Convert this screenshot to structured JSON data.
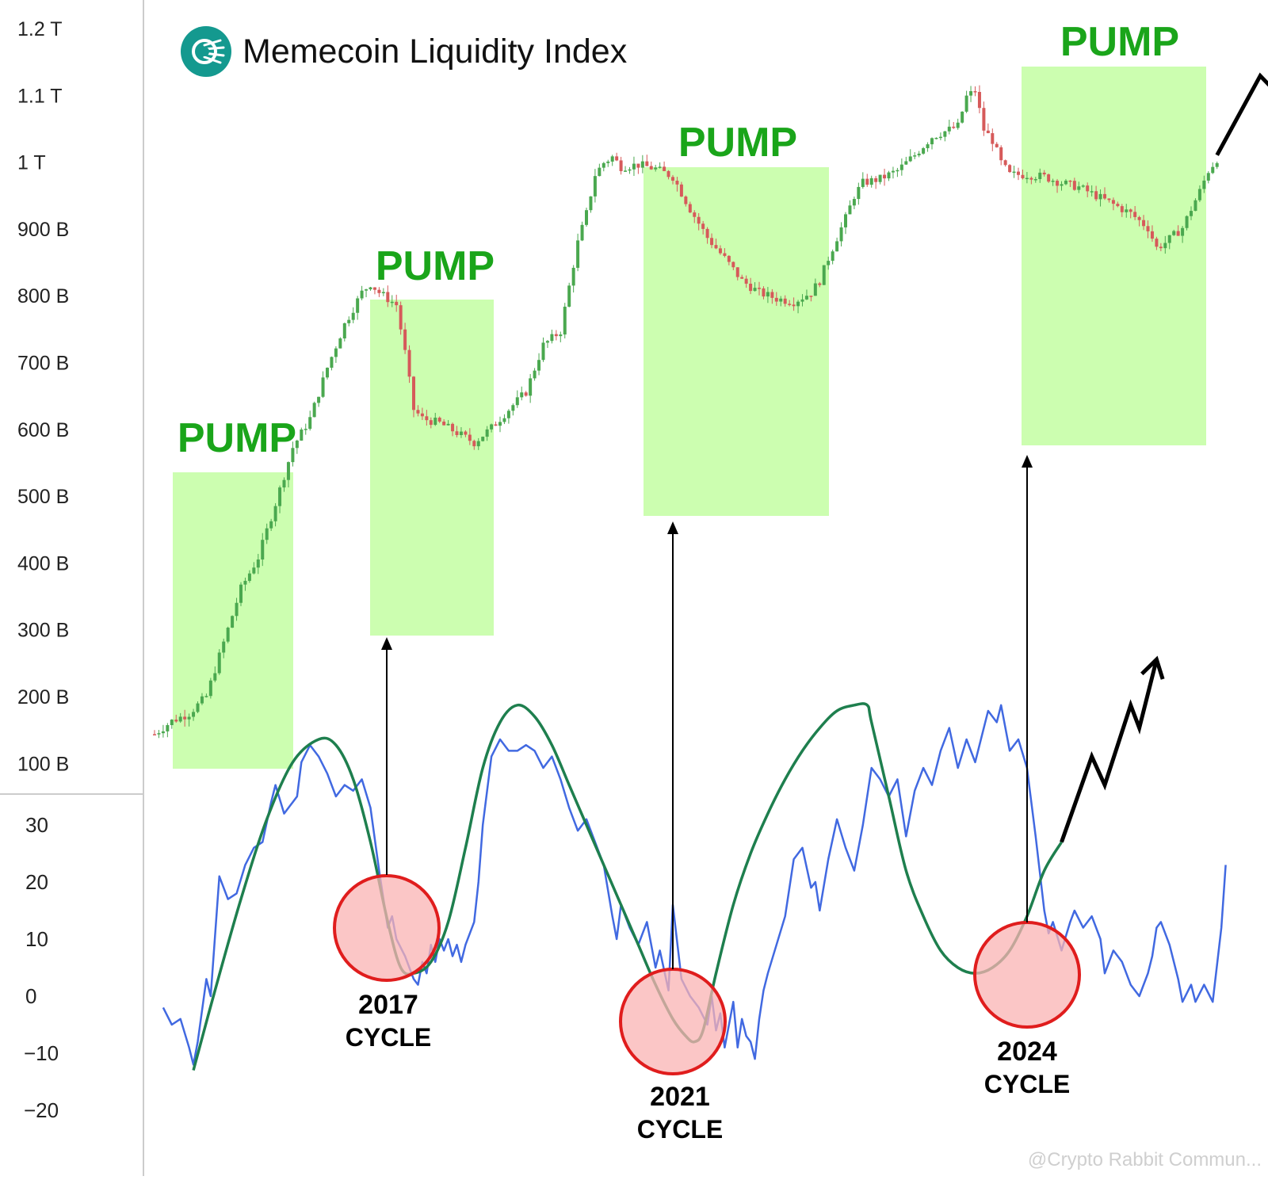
{
  "title": "Memecoin Liquidity Index",
  "watermark": "@Crypto Rabbit Commun...",
  "colors": {
    "pump_zone": "#ccfeb0",
    "pump_text": "#1aa51a",
    "candle_up": "#4aa84f",
    "candle_down": "#d65a5a",
    "oscillator_line": "#4169e1",
    "smooth_curve": "#1e7f4e",
    "cycle_circle_fill": "#f9b3b3",
    "cycle_circle_stroke": "#e01d1d",
    "logo": "#14998f"
  },
  "icons": {
    "logo": "liquidity-logo-icon"
  },
  "chart_data": [
    {
      "type": "candlestick",
      "name": "price-panel",
      "y_axis": {
        "scale": "log",
        "ticks": [
          "1.2 T",
          "1.1 T",
          "1 T",
          "900 B",
          "800 B",
          "700 B",
          "600 B",
          "500 B",
          "400 B",
          "300 B",
          "200 B",
          "100 B"
        ]
      },
      "pump_labels": [
        "PUMP",
        "PUMP",
        "PUMP",
        "PUMP"
      ],
      "close_path": [
        [
          0,
          110
        ],
        [
          4,
          115
        ],
        [
          8,
          118
        ],
        [
          12,
          125
        ],
        [
          16,
          150
        ],
        [
          20,
          180
        ],
        [
          24,
          200
        ],
        [
          28,
          240
        ],
        [
          32,
          290
        ],
        [
          36,
          320
        ],
        [
          40,
          380
        ],
        [
          44,
          440
        ],
        [
          48,
          490
        ],
        [
          50,
          505
        ],
        [
          52,
          490
        ],
        [
          56,
          470
        ],
        [
          58,
          400
        ],
        [
          60,
          330
        ],
        [
          62,
          320
        ],
        [
          66,
          315
        ],
        [
          70,
          305
        ],
        [
          74,
          295
        ],
        [
          78,
          310
        ],
        [
          82,
          330
        ],
        [
          86,
          350
        ],
        [
          90,
          410
        ],
        [
          94,
          430
        ],
        [
          96,
          500
        ],
        [
          98,
          580
        ],
        [
          100,
          640
        ],
        [
          102,
          730
        ],
        [
          104,
          760
        ],
        [
          106,
          775
        ],
        [
          108,
          750
        ],
        [
          112,
          755
        ],
        [
          116,
          745
        ],
        [
          120,
          725
        ],
        [
          124,
          650
        ],
        [
          128,
          590
        ],
        [
          132,
          550
        ],
        [
          136,
          510
        ],
        [
          140,
          490
        ],
        [
          144,
          480
        ],
        [
          148,
          475
        ],
        [
          152,
          490
        ],
        [
          154,
          510
        ],
        [
          156,
          550
        ],
        [
          158,
          590
        ],
        [
          160,
          630
        ],
        [
          162,
          680
        ],
        [
          164,
          710
        ],
        [
          168,
          720
        ],
        [
          172,
          740
        ],
        [
          176,
          780
        ],
        [
          180,
          830
        ],
        [
          184,
          850
        ],
        [
          186,
          860
        ],
        [
          188,
          950
        ],
        [
          190,
          970
        ],
        [
          192,
          850
        ],
        [
          194,
          820
        ],
        [
          196,
          760
        ],
        [
          198,
          730
        ],
        [
          202,
          730
        ],
        [
          206,
          725
        ],
        [
          210,
          710
        ],
        [
          214,
          700
        ],
        [
          218,
          680
        ],
        [
          222,
          660
        ],
        [
          226,
          640
        ],
        [
          230,
          610
        ],
        [
          232,
          570
        ],
        [
          234,
          580
        ],
        [
          238,
          610
        ],
        [
          240,
          650
        ],
        [
          242,
          690
        ],
        [
          244,
          740
        ],
        [
          246,
          770
        ]
      ],
      "forecast_path": [
        [
          246,
          780
        ],
        [
          256,
          1020
        ],
        [
          260,
          960
        ],
        [
          266,
          1130
        ],
        [
          270,
          1080
        ],
        [
          276,
          1190
        ]
      ]
    },
    {
      "type": "line",
      "name": "oscillator-panel",
      "y_axis": {
        "ticks": [
          "30",
          "20",
          "10",
          "0",
          "−10",
          "−20"
        ]
      },
      "series": [
        {
          "key": "oscillator",
          "values": [
            [
              2,
              -2
            ],
            [
              4,
              -5
            ],
            [
              6,
              -4
            ],
            [
              8,
              -9
            ],
            [
              9,
              -12
            ],
            [
              10,
              -8
            ],
            [
              12,
              3
            ],
            [
              13,
              0
            ],
            [
              15,
              21
            ],
            [
              17,
              17
            ],
            [
              19,
              18
            ],
            [
              21,
              23
            ],
            [
              23,
              26
            ],
            [
              25,
              27
            ],
            [
              27,
              34
            ],
            [
              28,
              37
            ],
            [
              30,
              32
            ],
            [
              32,
              34
            ],
            [
              33,
              35
            ],
            [
              34,
              41
            ],
            [
              36,
              44
            ],
            [
              38,
              42
            ],
            [
              40,
              39
            ],
            [
              42,
              35
            ],
            [
              44,
              37
            ],
            [
              46,
              36
            ],
            [
              48,
              38
            ],
            [
              50,
              33
            ],
            [
              52,
              22
            ],
            [
              54,
              12
            ],
            [
              55,
              14
            ],
            [
              56,
              10
            ],
            [
              58,
              7
            ],
            [
              60,
              3
            ],
            [
              61,
              2
            ],
            [
              62,
              6
            ],
            [
              63,
              4
            ],
            [
              64,
              9
            ],
            [
              65,
              6
            ],
            [
              66,
              10
            ],
            [
              67,
              8
            ],
            [
              68,
              10
            ],
            [
              69,
              7
            ],
            [
              70,
              9
            ],
            [
              71,
              6
            ],
            [
              72,
              9
            ],
            [
              73,
              11
            ],
            [
              74,
              13
            ],
            [
              75,
              20
            ],
            [
              76,
              30
            ],
            [
              78,
              42
            ],
            [
              80,
              45
            ],
            [
              82,
              43
            ],
            [
              84,
              43
            ],
            [
              86,
              44
            ],
            [
              88,
              43
            ],
            [
              90,
              40
            ],
            [
              92,
              42
            ],
            [
              94,
              38
            ],
            [
              96,
              33
            ],
            [
              98,
              29
            ],
            [
              100,
              31
            ],
            [
              102,
              27
            ],
            [
              104,
              23
            ],
            [
              106,
              14
            ],
            [
              107,
              10
            ],
            [
              108,
              16
            ],
            [
              110,
              12
            ],
            [
              112,
              9
            ],
            [
              114,
              13
            ],
            [
              116,
              5
            ],
            [
              117,
              8
            ],
            [
              119,
              1
            ],
            [
              120,
              16
            ],
            [
              122,
              3
            ],
            [
              124,
              0
            ],
            [
              126,
              -2
            ],
            [
              128,
              -5
            ],
            [
              129,
              0
            ],
            [
              130,
              -6
            ],
            [
              131,
              -3
            ],
            [
              132,
              -9
            ],
            [
              133,
              -5
            ],
            [
              134,
              -1
            ],
            [
              135,
              -9
            ],
            [
              136,
              -4
            ],
            [
              137,
              -7
            ],
            [
              138,
              -8
            ],
            [
              139,
              -11
            ],
            [
              140,
              -4
            ],
            [
              141,
              1
            ],
            [
              142,
              4
            ],
            [
              144,
              9
            ],
            [
              146,
              14
            ],
            [
              148,
              24
            ],
            [
              150,
              26
            ],
            [
              152,
              19
            ],
            [
              153,
              20
            ],
            [
              154,
              15
            ],
            [
              156,
              24
            ],
            [
              158,
              31
            ],
            [
              160,
              26
            ],
            [
              162,
              22
            ],
            [
              164,
              30
            ],
            [
              166,
              40
            ],
            [
              168,
              38
            ],
            [
              170,
              35
            ],
            [
              172,
              38
            ],
            [
              174,
              28
            ],
            [
              176,
              36
            ],
            [
              178,
              40
            ],
            [
              180,
              37
            ],
            [
              182,
              43
            ],
            [
              184,
              47
            ],
            [
              186,
              40
            ],
            [
              188,
              45
            ],
            [
              190,
              41
            ],
            [
              192,
              47
            ],
            [
              193,
              50
            ],
            [
              195,
              48
            ],
            [
              196,
              51
            ],
            [
              198,
              43
            ],
            [
              200,
              45
            ],
            [
              202,
              40
            ],
            [
              204,
              28
            ],
            [
              206,
              15
            ],
            [
              207,
              11
            ],
            [
              208,
              13
            ],
            [
              210,
              8
            ],
            [
              212,
              13
            ],
            [
              213,
              15
            ],
            [
              215,
              12
            ],
            [
              217,
              14
            ],
            [
              219,
              10
            ],
            [
              220,
              4
            ],
            [
              222,
              8
            ],
            [
              224,
              6
            ],
            [
              226,
              2
            ],
            [
              228,
              0
            ],
            [
              230,
              4
            ],
            [
              231,
              7
            ],
            [
              232,
              12
            ],
            [
              233,
              13
            ],
            [
              235,
              9
            ],
            [
              237,
              3
            ],
            [
              238,
              -1
            ],
            [
              240,
              2
            ],
            [
              241,
              -1
            ],
            [
              243,
              2
            ],
            [
              245,
              -1
            ],
            [
              247,
              12
            ],
            [
              248,
              23
            ]
          ]
        },
        {
          "key": "smooth_curve",
          "values": [
            [
              9,
              -13
            ],
            [
              14,
              1
            ],
            [
              20,
              17
            ],
            [
              26,
              31
            ],
            [
              32,
              41
            ],
            [
              38,
              45
            ],
            [
              42,
              44
            ],
            [
              46,
              38
            ],
            [
              50,
              27
            ],
            [
              54,
              13
            ],
            [
              57,
              5
            ],
            [
              60,
              4
            ],
            [
              64,
              6
            ],
            [
              68,
              13
            ],
            [
              72,
              26
            ],
            [
              76,
              40
            ],
            [
              80,
              48
            ],
            [
              84,
              51
            ],
            [
              88,
              49
            ],
            [
              92,
              44
            ],
            [
              96,
              37
            ],
            [
              100,
              30
            ],
            [
              104,
              23
            ],
            [
              108,
              16
            ],
            [
              112,
              9
            ],
            [
              116,
              2
            ],
            [
              120,
              -4
            ],
            [
              123,
              -7
            ],
            [
              125,
              -8
            ],
            [
              127,
              -6
            ],
            [
              130,
              4
            ],
            [
              134,
              16
            ],
            [
              138,
              25
            ],
            [
              142,
              32
            ],
            [
              146,
              38
            ],
            [
              150,
              43
            ],
            [
              154,
              47
            ],
            [
              158,
              50
            ],
            [
              162,
              51
            ],
            [
              165,
              51
            ],
            [
              166,
              48
            ],
            [
              170,
              35
            ],
            [
              174,
              22
            ],
            [
              178,
              14
            ],
            [
              182,
              8
            ],
            [
              186,
              5
            ],
            [
              190,
              4
            ],
            [
              194,
              5
            ],
            [
              198,
              8
            ],
            [
              202,
              14
            ],
            [
              206,
              22
            ],
            [
              210,
              27
            ]
          ]
        }
      ],
      "forecast_path": [
        [
          210,
          27
        ],
        [
          217,
          42
        ],
        [
          220,
          37
        ],
        [
          226,
          51
        ],
        [
          228,
          47
        ],
        [
          232,
          59
        ]
      ],
      "cycle_labels": [
        {
          "line1": "2017",
          "line2": "CYCLE"
        },
        {
          "line1": "2021",
          "line2": "CYCLE"
        },
        {
          "line1": "2024",
          "line2": "CYCLE"
        }
      ]
    }
  ]
}
